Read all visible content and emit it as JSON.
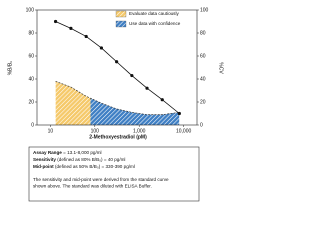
{
  "chart_data": {
    "type": "line",
    "x_label": "2-Methoxyestradiol (pM)",
    "y_label": "%B/B₀",
    "y2_label": "%CV",
    "xscale": "log",
    "xlim": [
      5,
      20000
    ],
    "xticks": [
      10,
      100,
      {
        "value": 1000,
        "label": "1,000"
      },
      {
        "value": 10000,
        "label": "10,000"
      }
    ],
    "ylim": [
      0,
      100
    ],
    "yticks": [
      0,
      20,
      40,
      60,
      80,
      100
    ],
    "y2lim": [
      0,
      100
    ],
    "y2ticks": [
      0,
      20,
      40,
      60,
      80,
      100
    ],
    "series": [
      {
        "color": "#111111",
        "x": [
          13.1,
          29,
          64,
          141,
          310,
          683,
          1500,
          3300,
          8000
        ],
        "values": [
          90,
          84,
          77,
          67,
          55,
          43,
          32,
          22,
          10
        ]
      },
      {
        "color": "#222222",
        "axis": "y2",
        "dashed": true,
        "x": [
          13.1,
          29,
          64,
          141,
          310,
          683,
          1500,
          3300,
          8000
        ],
        "values": [
          38,
          33,
          25,
          19,
          14,
          11,
          9,
          9,
          11
        ]
      }
    ],
    "regions": [
      {
        "label": "Evaluate data cautiously",
        "color": "#f5c96a",
        "xlim": [
          13.1,
          80
        ]
      },
      {
        "label": "Use data with confidence",
        "color": "#3f7fc4",
        "xlim": [
          80,
          8000
        ]
      }
    ]
  },
  "notes": {
    "lines": [
      {
        "label": "Assay Range",
        "text": "= 13.1-8,000 pg/ml"
      },
      {
        "label": "Sensitivity",
        "text": "(defined as 80% B/B₀) = 40 pg/ml"
      },
      {
        "label": "Mid-point",
        "text": "(defined as 50% B/B₀) = 330-390 pg/ml"
      }
    ],
    "paragraph": [
      "The sensitivity and mid-point were derived from the standard curve",
      "shown above. The standard was diluted with ELISA Buffer."
    ]
  }
}
